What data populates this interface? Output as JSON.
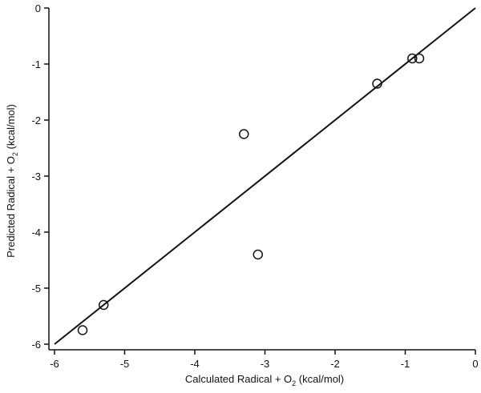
{
  "chart_data": {
    "type": "scatter",
    "title": "",
    "xlabel": "Calculated Radical + O2 (kcal/mol)",
    "ylabel": "Predicted Radical + O2 (kcal/mol)",
    "xlabel_parts": {
      "pre": "Calculated Radical + O",
      "sub": "2",
      "post": " (kcal/mol)"
    },
    "ylabel_parts": {
      "pre": "Predicted Radical + O",
      "sub": "2",
      "post": " (kcal/mol)"
    },
    "xlim": [
      -6,
      0
    ],
    "ylim": [
      -6,
      0
    ],
    "xticks": [
      "-6",
      "-5",
      "-4",
      "-3",
      "-2",
      "-1",
      "0"
    ],
    "yticks": [
      "0",
      "-1",
      "-2",
      "-3",
      "-4",
      "-5",
      "-6"
    ],
    "grid": false,
    "legend": null,
    "series": [
      {
        "name": "data",
        "marker": "open-circle",
        "points": [
          {
            "x": -5.6,
            "y": -5.75
          },
          {
            "x": -5.3,
            "y": -5.3
          },
          {
            "x": -3.3,
            "y": -2.25
          },
          {
            "x": -3.1,
            "y": -4.4
          },
          {
            "x": -1.4,
            "y": -1.35
          },
          {
            "x": -0.9,
            "y": -0.9
          },
          {
            "x": -0.8,
            "y": -0.9
          }
        ]
      },
      {
        "name": "y = x",
        "type": "line",
        "points": [
          {
            "x": -6,
            "y": -6
          },
          {
            "x": 0,
            "y": 0
          }
        ]
      }
    ]
  }
}
